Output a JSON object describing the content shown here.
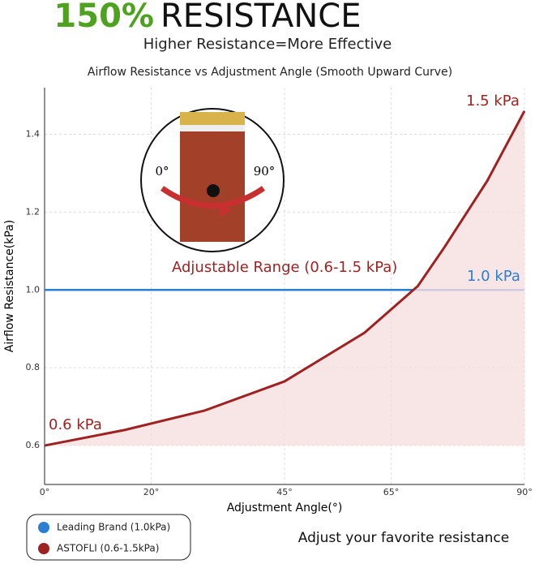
{
  "chart_data": {
    "type": "line",
    "headline_accent": "150%",
    "headline": "RESISTANCE",
    "subtitle": "Higher Resistance=More Effective",
    "title": "Airflow Resistance vs Adjustment Angle (Smooth Upward Curve)",
    "xlabel": "Adjustment Angle(°)",
    "ylabel": "Airflow Resistance(kPa)",
    "xlim": [
      0,
      90
    ],
    "ylim": [
      0.5,
      1.52
    ],
    "xticks": [
      {
        "value": 0,
        "label": "0°"
      },
      {
        "value": 20,
        "label": "20°"
      },
      {
        "value": 45,
        "label": "45°"
      },
      {
        "value": 65,
        "label": "65°"
      },
      {
        "value": 90,
        "label": "90°"
      }
    ],
    "yticks": [
      0.6,
      0.8,
      {
        "value": 1,
        "label": "1.0"
      },
      1.2,
      1.4
    ],
    "grid": true,
    "legend": "bottom-left",
    "series": [
      {
        "name": "Leading Brand (1.0kPa)",
        "color": "#2a7fd4",
        "x": [
          0,
          90
        ],
        "values": [
          1,
          1
        ]
      },
      {
        "name": "ASTOFLI (0.6-1.5kPa)",
        "color": "#9e2222",
        "fill": "#f6dede",
        "x": [
          0,
          15,
          30,
          45,
          60,
          70,
          75,
          83,
          90
        ],
        "values": [
          0.6,
          0.64,
          0.69,
          0.765,
          0.89,
          1.01,
          1.11,
          1.28,
          1.46
        ]
      }
    ],
    "annotations": [
      "1.5 kPa",
      "1.0 kPa",
      "0.6 kPa",
      "Adjustable Range (0.6-1.5 kPa)"
    ],
    "inset_labels": [
      "0°",
      "90°"
    ],
    "footer": "Adjust your favorite resistance"
  }
}
